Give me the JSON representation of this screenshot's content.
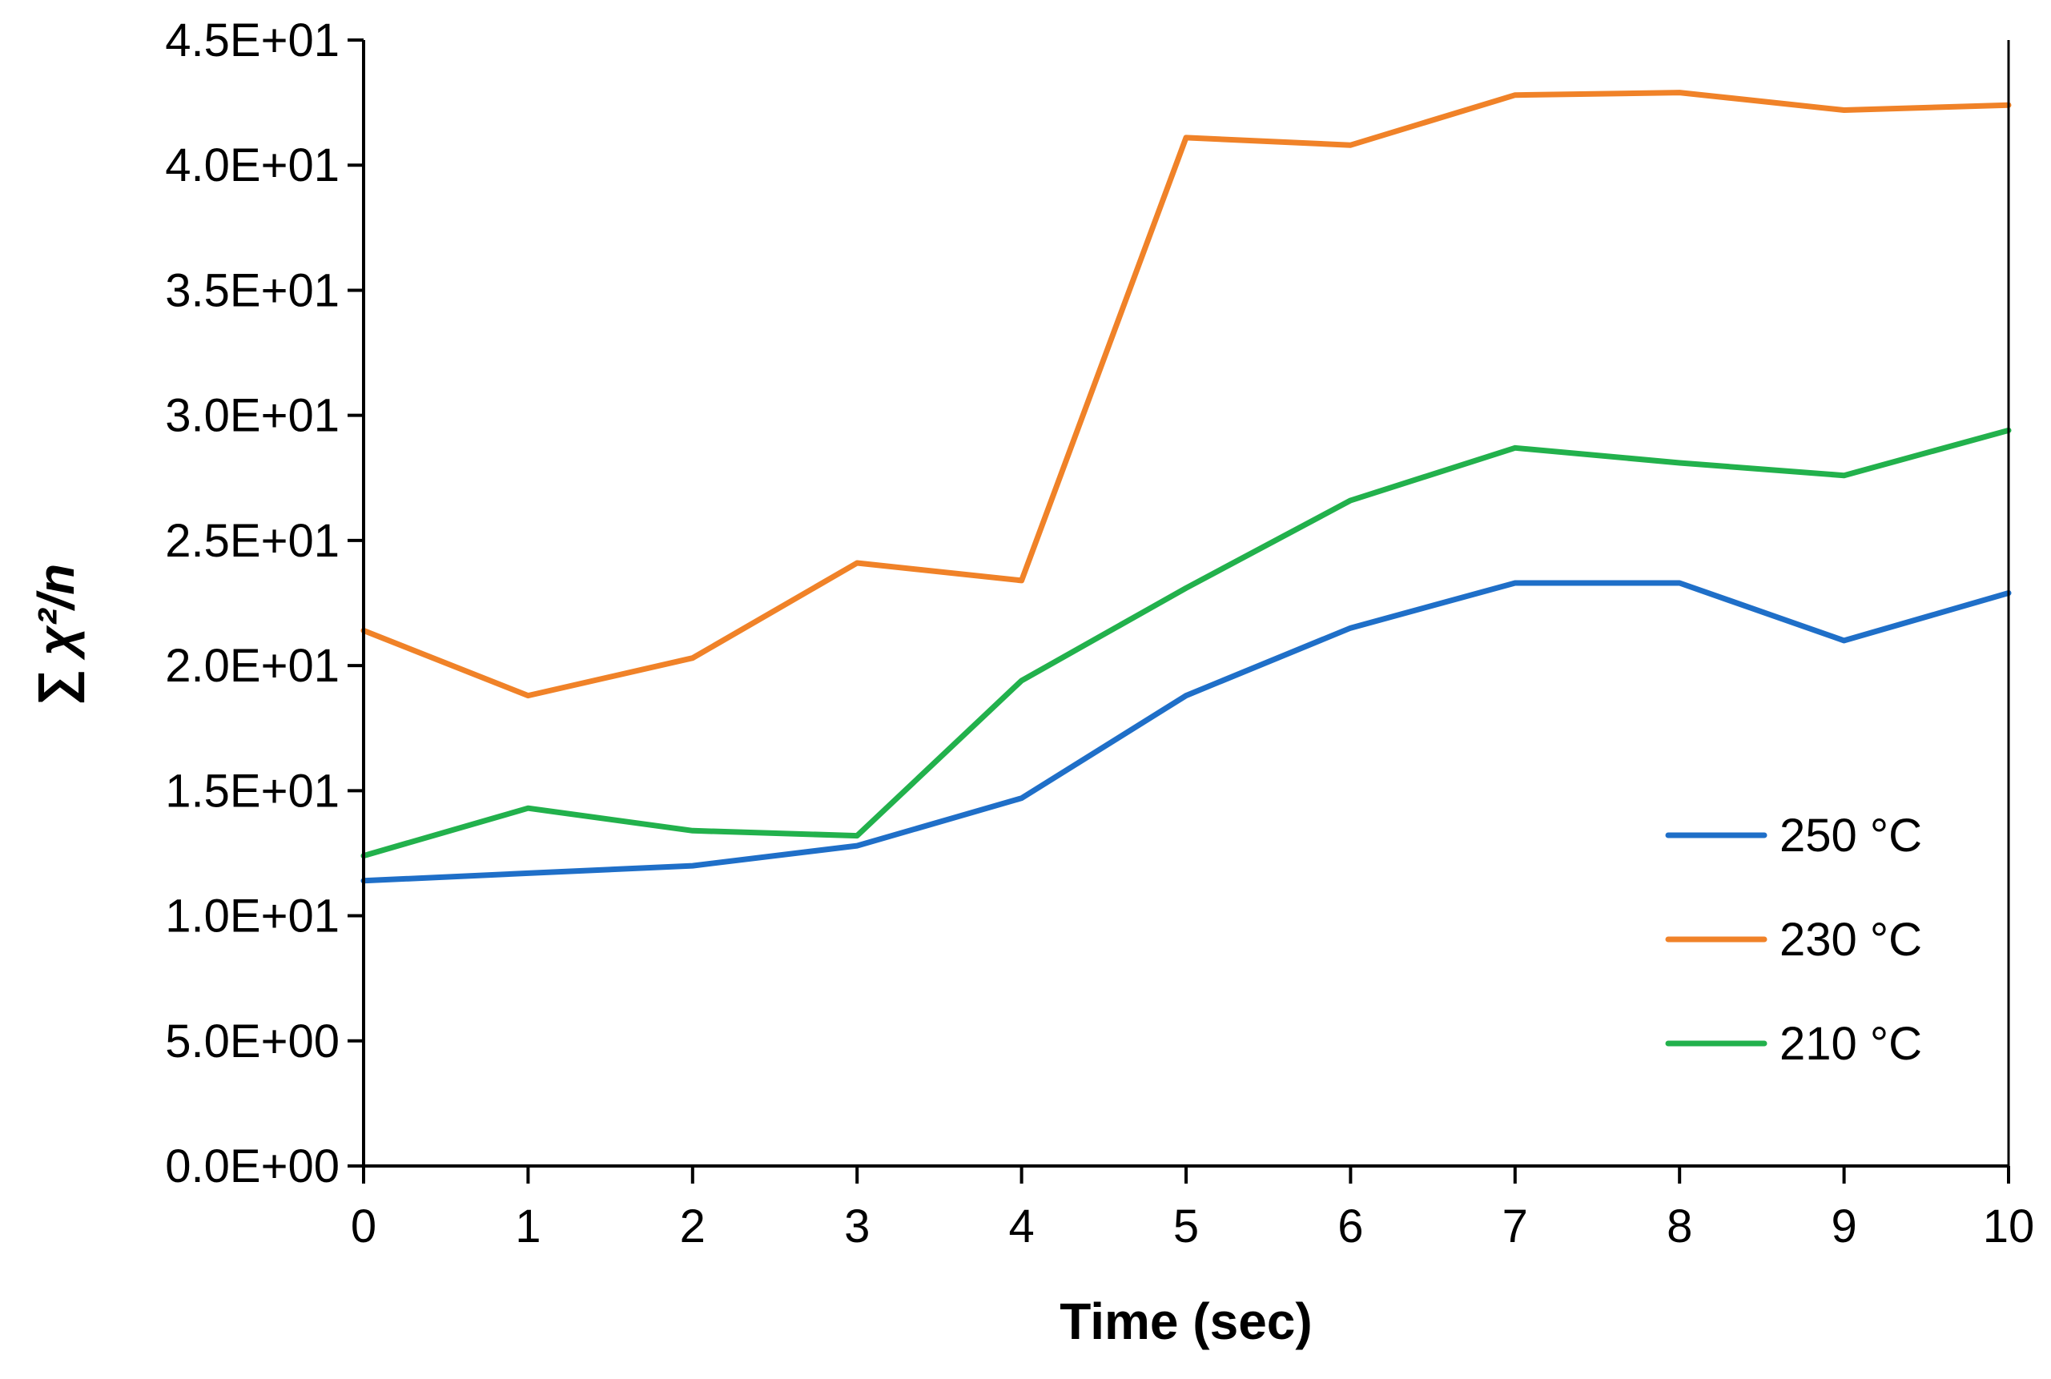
{
  "chart_data": {
    "type": "line",
    "title": "",
    "xlabel": "Time (sec)",
    "ylabel": "∑ χ²/n",
    "xlim": [
      0,
      10
    ],
    "ylim": [
      0,
      45
    ],
    "x_ticks": [
      "0",
      "1",
      "2",
      "3",
      "4",
      "5",
      "6",
      "7",
      "8",
      "9",
      "10"
    ],
    "y_ticks": [
      {
        "value": 0,
        "label": "0.0E+00"
      },
      {
        "value": 5,
        "label": "5.0E+00"
      },
      {
        "value": 10,
        "label": "1.0E+01"
      },
      {
        "value": 15,
        "label": "1.5E+01"
      },
      {
        "value": 20,
        "label": "2.0E+01"
      },
      {
        "value": 25,
        "label": "2.5E+01"
      },
      {
        "value": 30,
        "label": "3.0E+01"
      },
      {
        "value": 35,
        "label": "3.5E+01"
      },
      {
        "value": 40,
        "label": "4.0E+01"
      },
      {
        "value": 45,
        "label": "4.5E+01"
      }
    ],
    "grid": false,
    "legend_position": "bottom-right",
    "x": [
      0,
      1,
      2,
      3,
      4,
      5,
      6,
      7,
      8,
      9,
      10
    ],
    "series": [
      {
        "name": "250 °C",
        "color": "#1f6fc8",
        "values": [
          11.4,
          11.7,
          12.0,
          12.8,
          14.7,
          18.8,
          21.5,
          23.3,
          23.3,
          21.0,
          22.9
        ]
      },
      {
        "name": "230 °C",
        "color": "#f08228",
        "values": [
          21.4,
          18.8,
          20.3,
          24.1,
          23.4,
          41.1,
          40.8,
          42.8,
          42.9,
          42.2,
          42.4
        ]
      },
      {
        "name": "210 °C",
        "color": "#22b14c",
        "values": [
          12.4,
          14.3,
          13.4,
          13.2,
          19.4,
          23.1,
          26.6,
          28.7,
          28.1,
          27.6,
          29.4
        ]
      }
    ]
  }
}
